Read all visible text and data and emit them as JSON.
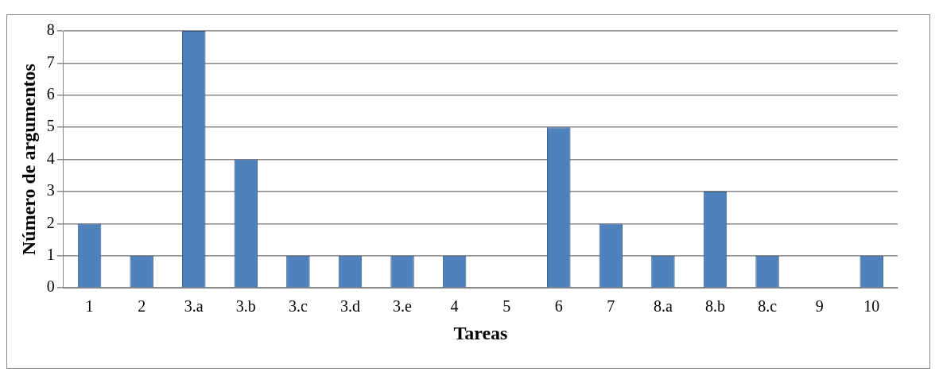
{
  "chart_data": {
    "type": "bar",
    "xlabel": "Tareas",
    "ylabel": "Número de argumentos",
    "categories": [
      "1",
      "2",
      "3.a",
      "3.b",
      "3.c",
      "3.d",
      "3.e",
      "4",
      "5",
      "6",
      "7",
      "8.a",
      "8.b",
      "8.c",
      "9",
      "10"
    ],
    "values": [
      2,
      1,
      8,
      4,
      1,
      1,
      1,
      1,
      0,
      5,
      2,
      1,
      3,
      1,
      0,
      1
    ],
    "color": "#4f81bd",
    "ylim": [
      0,
      8
    ],
    "yticks": [
      0,
      1,
      2,
      3,
      4,
      5,
      6,
      7,
      8
    ],
    "grid": "y",
    "legend": false
  }
}
